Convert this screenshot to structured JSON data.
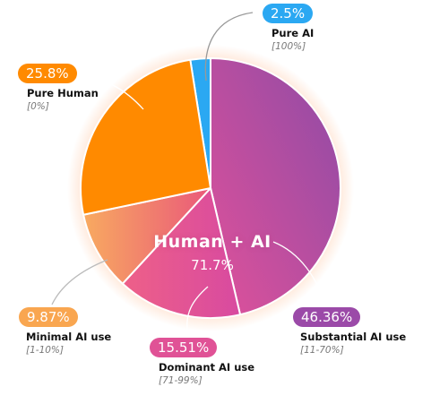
{
  "chart_data": {
    "type": "pie",
    "slices": [
      {
        "name": "Pure AI",
        "range": "[100%]",
        "value": 2.5,
        "label": "2.5%",
        "color": "#2ba8f2",
        "pill_color": "#2ba8f2"
      },
      {
        "name": "Substantial AI use",
        "range": "[11-70%]",
        "value": 46.36,
        "label": "46.36%",
        "color": "#b24aa4",
        "pill_color": "#9b4aa8"
      },
      {
        "name": "Dominant AI use",
        "range": "[71-99%]",
        "value": 15.51,
        "label": "15.51%",
        "color": "#e4509a",
        "pill_color": "#e05296"
      },
      {
        "name": "Minimal AI use",
        "range": "[1-10%]",
        "value": 9.87,
        "label": "9.87%",
        "color": "#f6a25e",
        "pill_color": "#f9a650"
      },
      {
        "name": "Pure Human",
        "range": "[0%]",
        "value": 25.8,
        "label": "25.8%",
        "color": "#ff8a00",
        "pill_color": "#ff8a00"
      }
    ],
    "group": {
      "title": "Human + AI",
      "value": "71.7%"
    },
    "colors": {
      "pure_ai": "#2ba8f2",
      "substantial_start": "#e0519a",
      "substantial_end": "#8e4ba6",
      "dominant": "#e4509a",
      "minimal_start": "#f8aa60",
      "minimal_end": "#e8557a",
      "pure_human": "#ff8a00",
      "glow": "#ff9a5a"
    }
  }
}
